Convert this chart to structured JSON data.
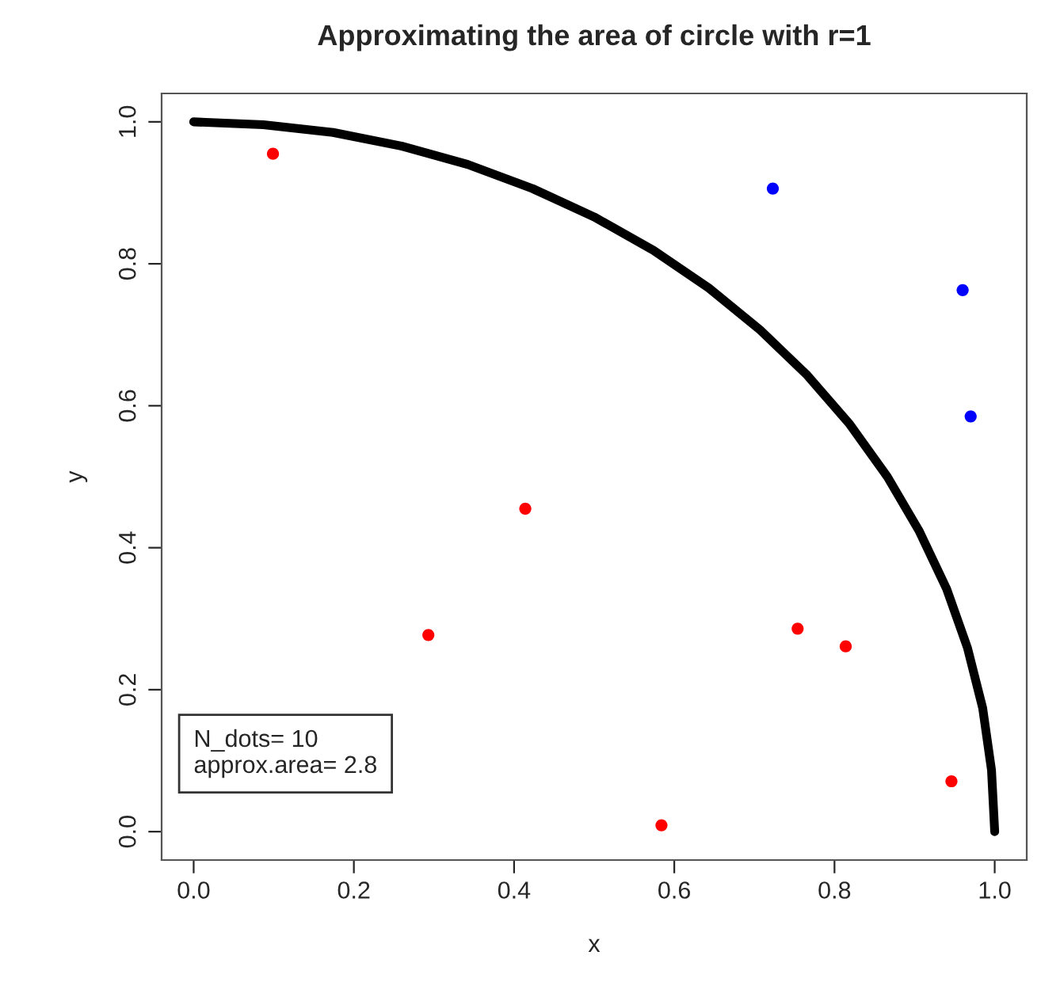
{
  "chart_data": {
    "type": "scatter",
    "title": "Approximating the area of circle with r=1",
    "xlabel": "x",
    "ylabel": "y",
    "xlim": [
      -0.04,
      1.04
    ],
    "ylim": [
      -0.04,
      1.04
    ],
    "xticks": [
      {
        "value": 0,
        "label": "0.0"
      },
      0.2,
      0.4,
      0.6,
      0.8,
      {
        "value": 1,
        "label": "1.0"
      }
    ],
    "yticks": [
      {
        "value": 0,
        "label": "0.0"
      },
      0.2,
      0.4,
      0.6,
      0.8,
      {
        "value": 1,
        "label": "1.0"
      }
    ],
    "grid": false,
    "legend": false,
    "marker": "circle",
    "annotations": [
      "N_dots= 10",
      "approx.area= 2.8"
    ],
    "series": [
      {
        "color": "#ff0000",
        "x": [
          0.099,
          0.293,
          0.414,
          0.584,
          0.754,
          0.814,
          0.946
        ],
        "values": [
          0.955,
          0.277,
          0.455,
          0.009,
          0.286,
          0.261,
          0.071
        ]
      },
      {
        "color": "#0000ff",
        "x": [
          0.723,
          0.96,
          0.97
        ],
        "values": [
          0.906,
          0.763,
          0.585
        ]
      },
      {
        "type": "line",
        "color": "#000000",
        "line_style": "solid",
        "marker": "none",
        "x": [
          1,
          0.996,
          0.985,
          0.966,
          0.94,
          0.906,
          0.866,
          0.819,
          0.766,
          0.707,
          0.643,
          0.574,
          0.5,
          0.423,
          0.342,
          0.259,
          0.174,
          0.087,
          0
        ],
        "values": [
          0,
          0.087,
          0.174,
          0.259,
          0.342,
          0.423,
          0.5,
          0.574,
          0.643,
          0.707,
          0.766,
          0.819,
          0.866,
          0.906,
          0.94,
          0.966,
          0.985,
          0.996,
          1
        ]
      }
    ]
  }
}
